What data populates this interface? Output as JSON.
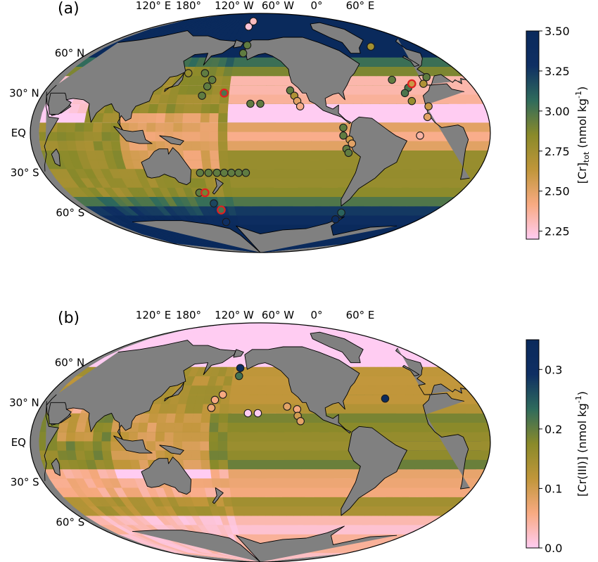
{
  "panels": [
    {
      "panel_label": "(a)",
      "lon_ticks": [
        "120° E",
        "180°",
        "120° W",
        "60° W",
        "0°",
        "60° E"
      ],
      "lat_ticks": [
        "60° N",
        "30° N",
        "EQ",
        "30° S",
        "60° S"
      ],
      "colorbar": {
        "label_main": "[Cr]",
        "label_sub": "tot",
        "label_units": " (nmol kg",
        "label_exp": "-1",
        "label_close": ")",
        "min": 2.2,
        "max": 3.5,
        "ticks": [
          "3.50",
          "3.25",
          "3.00",
          "2.75",
          "2.50",
          "2.25"
        ],
        "tick_values": [
          3.5,
          3.25,
          3.0,
          2.75,
          2.5,
          2.25
        ],
        "colormap": [
          "#ffccf2",
          "#f8aa82",
          "#c0963a",
          "#8a8a2a",
          "#2f6b5c",
          "#0f2f63",
          "#0a2a5c"
        ]
      },
      "observations": [
        {
          "lon": -170,
          "lat": 80,
          "value": 2.25
        },
        {
          "lon": -165,
          "lat": 84,
          "value": 2.3
        },
        {
          "lon": -165,
          "lat": 66,
          "value": 2.95
        },
        {
          "lon": -168,
          "lat": 60,
          "value": 2.95
        },
        {
          "lon": 145,
          "lat": 45,
          "value": 2.8
        },
        {
          "lon": 160,
          "lat": 45,
          "value": 2.95
        },
        {
          "lon": 168,
          "lat": 40,
          "value": 2.95
        },
        {
          "lon": 165,
          "lat": 35,
          "value": 2.95
        },
        {
          "lon": 162,
          "lat": 28,
          "value": 2.95
        },
        {
          "lon": -180,
          "lat": 30,
          "value": 3.0,
          "highlight": true
        },
        {
          "lon": -158,
          "lat": 22,
          "value": 2.95
        },
        {
          "lon": -150,
          "lat": 22,
          "value": 2.95
        },
        {
          "lon": -125,
          "lat": 32,
          "value": 2.95
        },
        {
          "lon": -122,
          "lat": 28,
          "value": 2.7
        },
        {
          "lon": -120,
          "lat": 24,
          "value": 2.5
        },
        {
          "lon": -118,
          "lat": 20,
          "value": 2.4
        },
        {
          "lon": -25,
          "lat": 65,
          "value": 2.75
        },
        {
          "lon": -35,
          "lat": 40,
          "value": 2.95
        },
        {
          "lon": -25,
          "lat": 34,
          "value": 3.0
        },
        {
          "lon": -20,
          "lat": 37,
          "value": 2.6,
          "highlight": true
        },
        {
          "lon": -10,
          "lat": 37,
          "value": 2.7
        },
        {
          "lon": -3,
          "lat": 42,
          "value": 2.95
        },
        {
          "lon": -30,
          "lat": 30,
          "value": 3.0
        },
        {
          "lon": -27,
          "lat": 24,
          "value": 2.8
        },
        {
          "lon": -15,
          "lat": 20,
          "value": 2.6
        },
        {
          "lon": -18,
          "lat": 12,
          "value": 2.5
        },
        {
          "lon": -25,
          "lat": -2,
          "value": 2.35
        },
        {
          "lon": -85,
          "lat": 4,
          "value": 2.95
        },
        {
          "lon": -85,
          "lat": -2,
          "value": 2.95
        },
        {
          "lon": -80,
          "lat": -5,
          "value": 2.6
        },
        {
          "lon": -78,
          "lat": -8,
          "value": 2.5
        },
        {
          "lon": -82,
          "lat": -12,
          "value": 2.95
        },
        {
          "lon": -80,
          "lat": -15,
          "value": 2.95
        },
        {
          "lon": 160,
          "lat": -30,
          "value": 2.95
        },
        {
          "lon": 167,
          "lat": -30,
          "value": 2.95
        },
        {
          "lon": 174,
          "lat": -30,
          "value": 2.95
        },
        {
          "lon": 180,
          "lat": -30,
          "value": 2.95
        },
        {
          "lon": -174,
          "lat": -30,
          "value": 2.95
        },
        {
          "lon": -168,
          "lat": -30,
          "value": 2.95
        },
        {
          "lon": -162,
          "lat": -30,
          "value": 2.95
        },
        {
          "lon": 155,
          "lat": -45,
          "value": 2.95
        },
        {
          "lon": 160,
          "lat": -45,
          "value": 2.9,
          "highlight": true
        },
        {
          "lon": 165,
          "lat": -53,
          "value": 3.2
        },
        {
          "lon": 170,
          "lat": -58,
          "value": 3.0,
          "highlight": true
        },
        {
          "lon": 170,
          "lat": -67,
          "value": 3.3
        },
        {
          "lon": -65,
          "lat": -60,
          "value": 3.1
        },
        {
          "lon": -65,
          "lat": -65,
          "value": 3.4
        }
      ]
    },
    {
      "panel_label": "(b)",
      "lon_ticks": [
        "120° E",
        "180°",
        "120° W",
        "60° W",
        "0°",
        "60° E"
      ],
      "lat_ticks": [
        "60° N",
        "30° N",
        "EQ",
        "30° S",
        "60° S"
      ],
      "colorbar": {
        "label_main": "[Cr(III)] (nmol kg",
        "label_sub": "",
        "label_units": "",
        "label_exp": "-1",
        "label_close": ")",
        "min": 0.0,
        "max": 0.35,
        "ticks": [
          "0.3",
          "0.2",
          "0.1",
          "0.0"
        ],
        "tick_values": [
          0.3,
          0.2,
          0.1,
          0.0
        ],
        "colormap": [
          "#ffccf2",
          "#f8aa82",
          "#c0963a",
          "#8a8a2a",
          "#2f6b5c",
          "#0f2f63",
          "#0a2a5c"
        ]
      },
      "observations": [
        {
          "lon": -170,
          "lat": 56,
          "value": 0.32
        },
        {
          "lon": -170,
          "lat": 50,
          "value": 0.22
        },
        {
          "lon": 178,
          "lat": 36,
          "value": 0.06
        },
        {
          "lon": 172,
          "lat": 32,
          "value": 0.06
        },
        {
          "lon": 170,
          "lat": 26,
          "value": 0.07
        },
        {
          "lon": -160,
          "lat": 22,
          "value": 0.0
        },
        {
          "lon": -152,
          "lat": 22,
          "value": 0.0
        },
        {
          "lon": -128,
          "lat": 27,
          "value": 0.08
        },
        {
          "lon": -120,
          "lat": 25,
          "value": 0.06
        },
        {
          "lon": -120,
          "lat": 20,
          "value": 0.1
        },
        {
          "lon": -118,
          "lat": 16,
          "value": 0.08
        },
        {
          "lon": -45,
          "lat": 33,
          "value": 0.34
        }
      ]
    }
  ]
}
